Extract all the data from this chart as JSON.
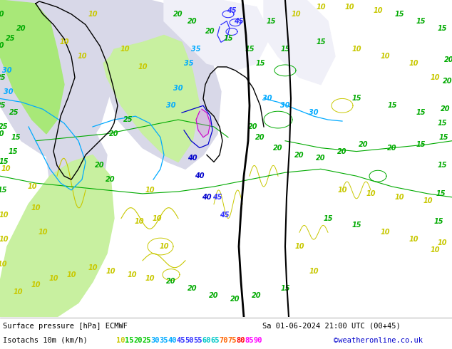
{
  "title_line1_left": "Surface pressure [hPa] ECMWF",
  "title_line1_right": "Sa 01-06-2024 21:00 UTC (00+45)",
  "title_line2_left": "Isotachs 10m (km/h)",
  "isotach_values": [
    "10",
    "15",
    "20",
    "25",
    "30",
    "35",
    "40",
    "45",
    "50",
    "55",
    "60",
    "65",
    "70",
    "75",
    "80",
    "85",
    "90"
  ],
  "isotach_colors": [
    "#c8c800",
    "#00c800",
    "#00c800",
    "#00c800",
    "#00aaff",
    "#00aaff",
    "#00aaff",
    "#3232ff",
    "#3232ff",
    "#3232ff",
    "#00c8c8",
    "#00c8c8",
    "#ff6400",
    "#ff6400",
    "#ff0000",
    "#ff00ff",
    "#ff00ff"
  ],
  "copyright_text": "©weatheronline.co.uk",
  "copyright_color": "#0000cc",
  "bg_color": "#ffffff",
  "map_light_green": "#c8f0a0",
  "map_mid_green": "#a8e878",
  "map_gray": "#d8d8e8",
  "map_white": "#f0f0f8",
  "fig_width": 6.34,
  "fig_height": 4.9,
  "dpi": 100
}
